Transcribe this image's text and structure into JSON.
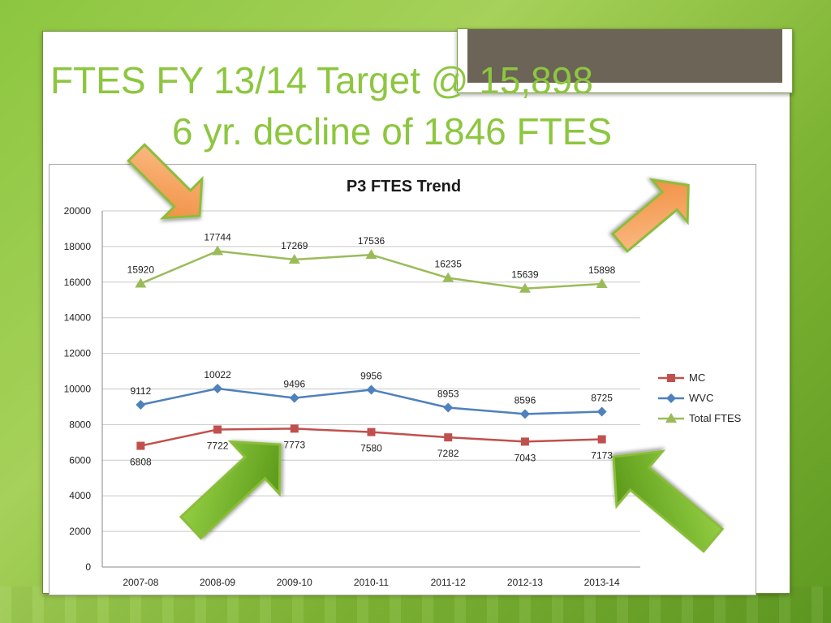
{
  "slide": {
    "title_line1": "FTES FY 13/14 Target  @ 15,898",
    "title_line2": "6 yr. decline of 1846 FTES"
  },
  "colors": {
    "title": "#8dc63f",
    "mc": "#c0504d",
    "wvc": "#4f81bd",
    "total": "#9bbb59",
    "orange_arrow": "#f7a05c",
    "green_arrow": "#6aad1c"
  },
  "chart_data": {
    "type": "line",
    "title": "P3 FTES Trend",
    "categories": [
      "2007-08",
      "2008-09",
      "2009-10",
      "2010-11",
      "2011-12",
      "2012-13",
      "2013-14"
    ],
    "ylim": [
      0,
      20000
    ],
    "yticks": [
      0,
      2000,
      4000,
      6000,
      8000,
      10000,
      12000,
      14000,
      16000,
      18000,
      20000
    ],
    "grid": true,
    "legend": "right",
    "series": [
      {
        "name": "MC",
        "values": [
          6808,
          7722,
          7773,
          7580,
          7282,
          7043,
          7173
        ],
        "color": "#c0504d",
        "marker": "square",
        "label_position": "below"
      },
      {
        "name": "WVC",
        "values": [
          9112,
          10022,
          9496,
          9956,
          8953,
          8596,
          8725
        ],
        "color": "#4f81bd",
        "marker": "diamond",
        "label_position": "above"
      },
      {
        "name": "Total FTES",
        "values": [
          15920,
          17744,
          17269,
          17536,
          16235,
          15639,
          15898
        ],
        "color": "#9bbb59",
        "marker": "triangle",
        "label_position": "above"
      }
    ]
  }
}
